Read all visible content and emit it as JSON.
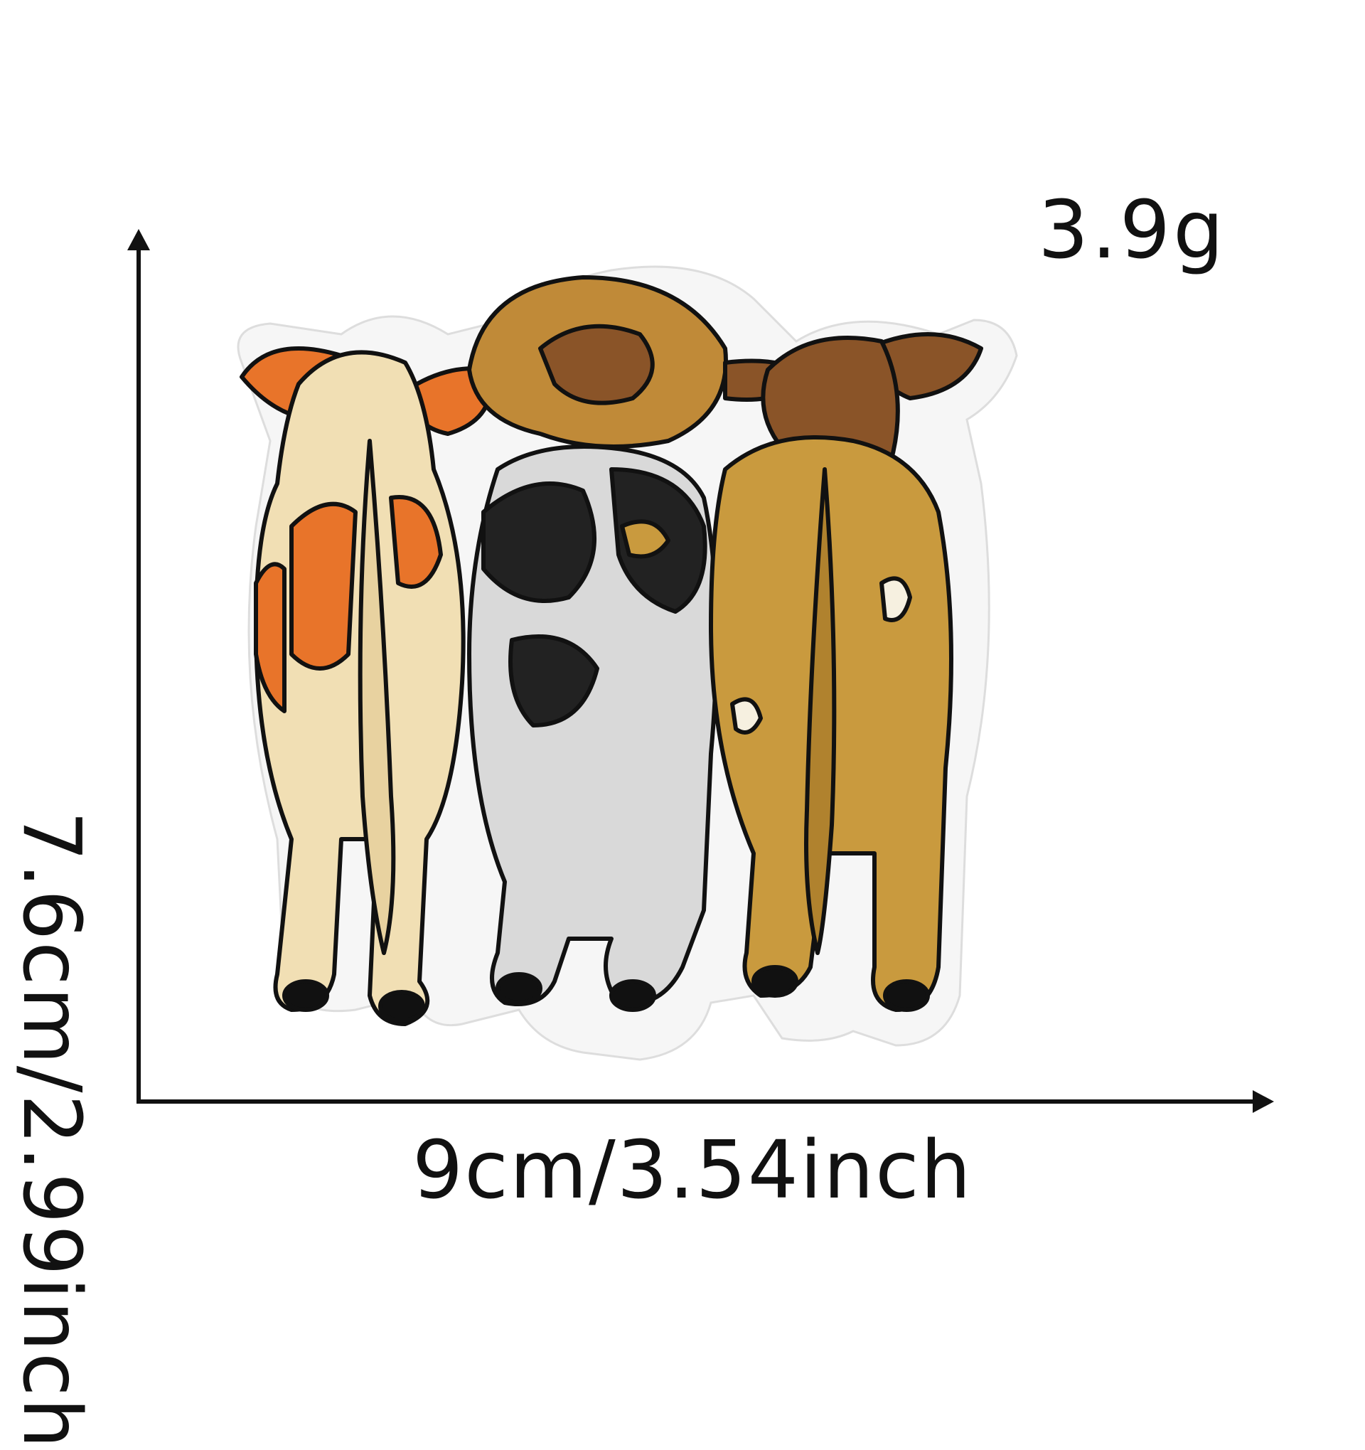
{
  "labels": {
    "weight": "3.9g",
    "width": "9cm/3.54inch",
    "height": "7.6cm/2.99inch"
  },
  "product": {
    "subject": "embroidered patch of three cows seen from behind",
    "colors": {
      "orange_cow": "#e8742a",
      "cream": "#f1dfb4",
      "black_white_cow": "#222222",
      "grey": "#bfbfbf",
      "tan_cow": "#c99a3e",
      "brown": "#8a5428",
      "felt_border": "#f6f6f6",
      "outline": "#111111"
    }
  }
}
